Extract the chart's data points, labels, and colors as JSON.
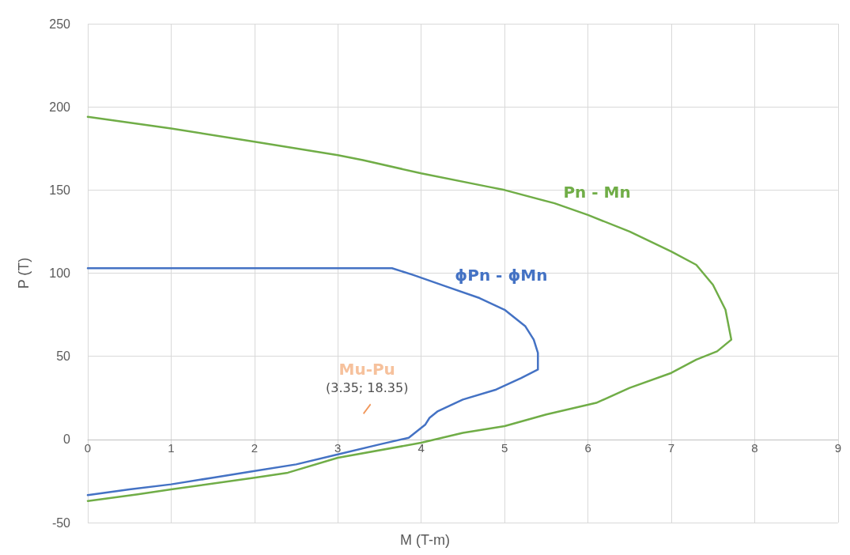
{
  "chart_data": {
    "type": "line",
    "xlabel": "M (T-m)",
    "ylabel": "P (T)",
    "xlim": [
      0,
      9
    ],
    "xticks": [
      0,
      1,
      2,
      3,
      4,
      5,
      6,
      7,
      8,
      9
    ],
    "ylim": [
      -50,
      250
    ],
    "yticks": [
      -50,
      0,
      50,
      100,
      150,
      200,
      250
    ],
    "grid": true,
    "line_style": "solid",
    "series": [
      {
        "name": "Pn - Mn",
        "color": "#70ad47",
        "marker": "none",
        "x": [
          0,
          1,
          2,
          3,
          3.3,
          4,
          4.8,
          5,
          5.6,
          6,
          6.5,
          7,
          7.3,
          7.5,
          7.65,
          7.72,
          7.55,
          7.3,
          7,
          6.5,
          6.1,
          5.5,
          5,
          4.5,
          4,
          3,
          2.4,
          2,
          1,
          0.6,
          0
        ],
        "values": [
          194,
          187,
          179,
          171,
          168,
          160,
          152,
          150,
          142,
          135,
          125,
          113,
          105,
          93,
          78,
          60,
          53,
          48,
          40,
          31,
          22,
          15,
          8,
          4,
          -2,
          -11,
          -20,
          -23,
          -30,
          -33,
          -37
        ]
      },
      {
        "name": "ϕPn - ϕMn",
        "color": "#4472c4",
        "marker": "none",
        "x": [
          0,
          1,
          2,
          3,
          3.65,
          3.9,
          4.3,
          4.7,
          5,
          5.25,
          5.35,
          5.4,
          5.4,
          5.2,
          4.9,
          4.5,
          4.2,
          4.1,
          4.05,
          3.85,
          3.5,
          3,
          2.5,
          2,
          1.5,
          1,
          0.5,
          0
        ],
        "values": [
          103,
          103,
          103,
          103,
          103,
          99,
          92,
          85,
          78,
          68,
          60,
          52,
          42,
          37,
          30,
          24,
          17,
          13,
          9,
          1,
          -3,
          -9,
          -15,
          -19,
          -23,
          -27,
          -30,
          -33.5
        ]
      },
      {
        "name": "Mu-Pu",
        "type": "scatter",
        "color": "#ed7d31",
        "x": [
          3.35
        ],
        "values": [
          18.35
        ],
        "value_labels": [
          "(3.35; 18.35)"
        ]
      }
    ]
  }
}
